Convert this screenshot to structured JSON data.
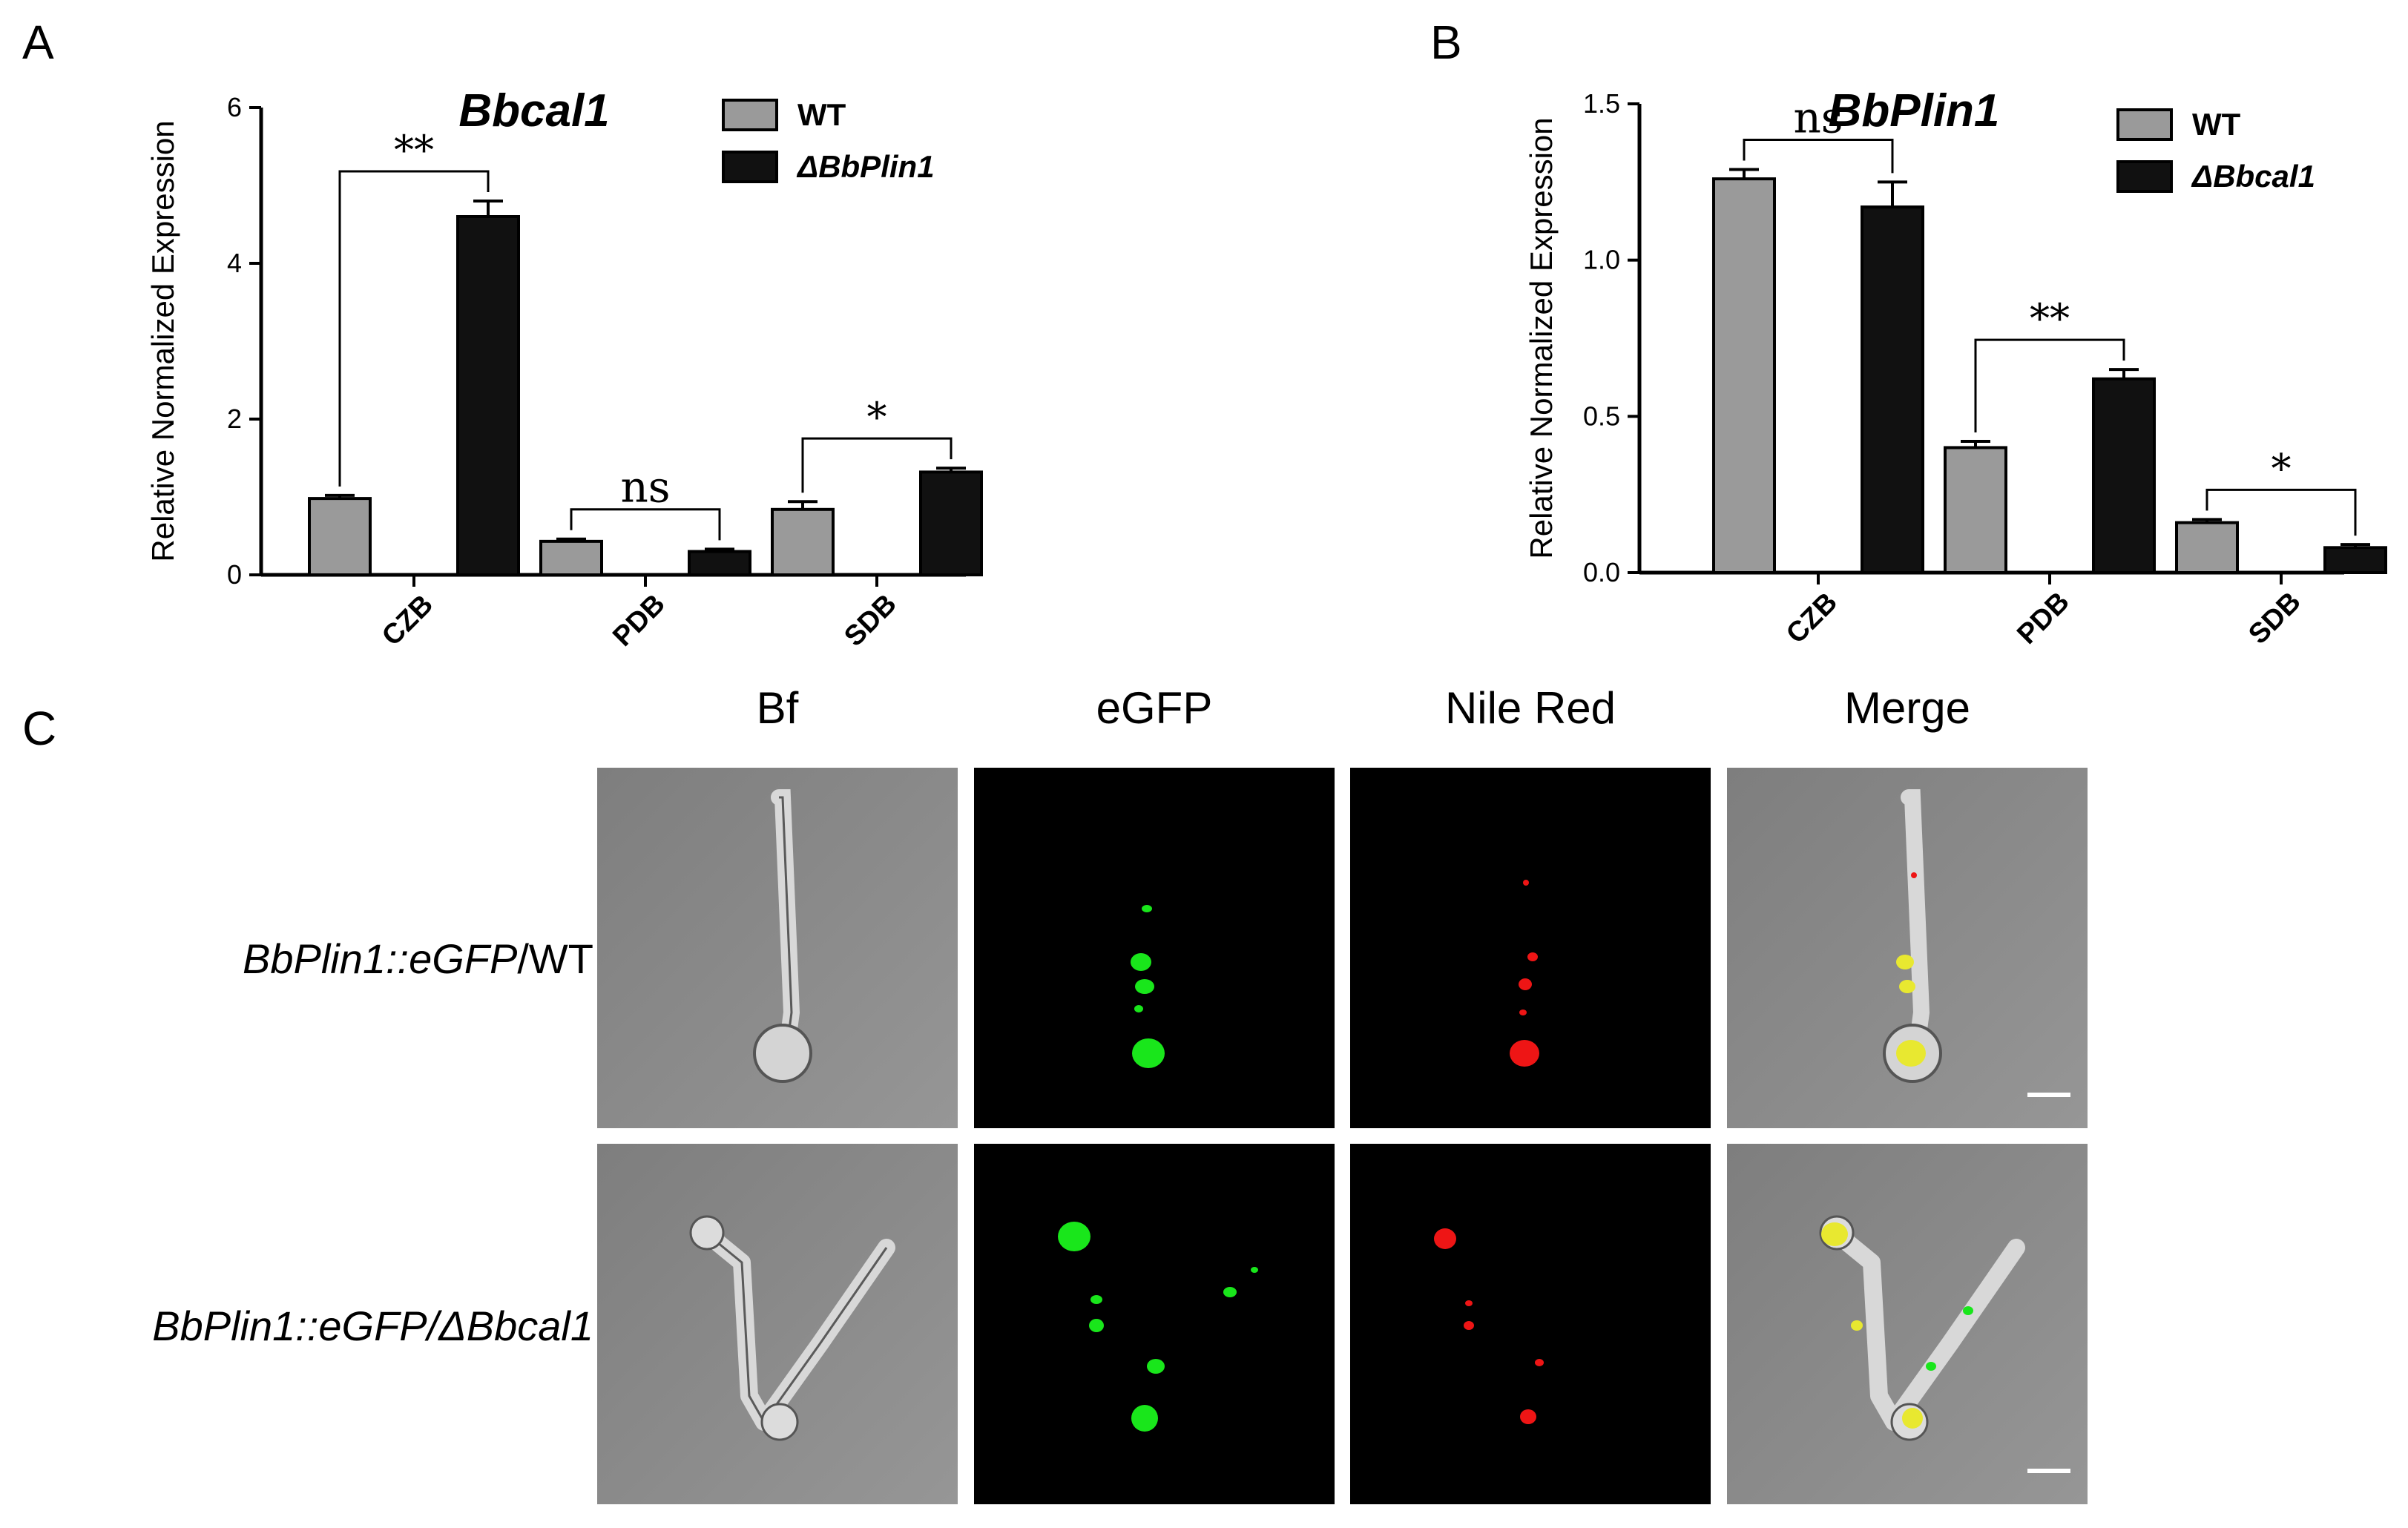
{
  "panel_letters": {
    "a": "A",
    "b": "B",
    "c": "C"
  },
  "chart_data": [
    {
      "type": "bar",
      "title": "Bbcal1",
      "ylabel": "Relative Normalized Expression",
      "xlabel": "",
      "ylim": [
        0,
        6
      ],
      "yticks": [
        0,
        2,
        4,
        6
      ],
      "categories": [
        "CZB",
        "PDB",
        "SDB"
      ],
      "series": [
        {
          "name": "WT",
          "color": "#9a9a9a",
          "values": [
            0.98,
            0.43,
            0.84
          ],
          "errors": [
            0.04,
            0.03,
            0.1
          ]
        },
        {
          "name": "ΔBbPlin1",
          "color": "#111111",
          "values": [
            4.6,
            0.3,
            1.32
          ],
          "errors": [
            0.2,
            0.03,
            0.05
          ]
        }
      ],
      "significance": [
        "**",
        "ns",
        "*"
      ],
      "legend": "top-right"
    },
    {
      "type": "bar",
      "title": "BbPlin1",
      "ylabel": "Relative Normalized Expression",
      "xlabel": "",
      "ylim": [
        0,
        1.5
      ],
      "yticks": [
        "0.0",
        "0.5",
        "1.0",
        "1.5"
      ],
      "categories": [
        "CZB",
        "PDB",
        "SDB"
      ],
      "series": [
        {
          "name": "WT",
          "color": "#9a9a9a",
          "values": [
            1.26,
            0.4,
            0.16
          ],
          "errors": [
            0.03,
            0.02,
            0.01
          ]
        },
        {
          "name": "ΔBbcal1",
          "color": "#111111",
          "values": [
            1.17,
            0.62,
            0.08
          ],
          "errors": [
            0.08,
            0.03,
            0.01
          ]
        }
      ],
      "significance": [
        "ns",
        "**",
        "*"
      ],
      "legend": "top-right"
    }
  ],
  "microscopy": {
    "columns": [
      "Bf",
      "eGFP",
      "Nile Red",
      "Merge"
    ],
    "rows": [
      {
        "label_italic": "BbPlin1::eGFP",
        "label_plain": "/WT"
      },
      {
        "label_italic": "BbPlin1::eGFP/ΔBbcal1",
        "label_plain": ""
      }
    ],
    "colors": {
      "bf": "#8c8c8c",
      "gfp": "#19e61b",
      "red": "#ee1515",
      "merge": "#e8e830",
      "dark": "#000000"
    }
  }
}
